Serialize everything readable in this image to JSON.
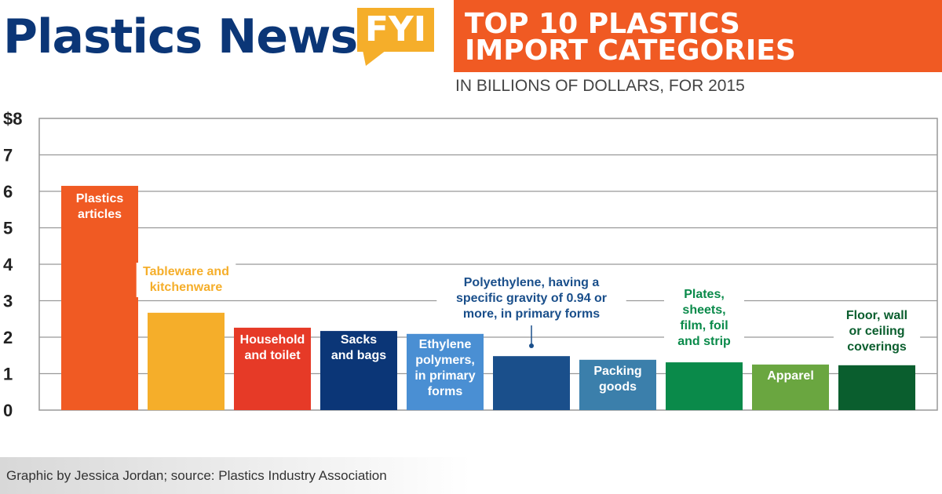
{
  "header": {
    "logo": "Plastics News",
    "badge": "FYI",
    "title_line1": "TOP 10 PLASTICS",
    "title_line2": "IMPORT CATEGORIES",
    "subtitle": "IN BILLIONS OF DOLLARS, FOR 2015"
  },
  "footer": {
    "credit": "Graphic by Jessica Jordan; source: Plastics Industry Association"
  },
  "chart_data": {
    "type": "bar",
    "title": "TOP 10 PLASTICS IMPORT CATEGORIES",
    "subtitle": "IN BILLIONS OF DOLLARS, FOR 2015",
    "ylim": [
      0,
      8
    ],
    "yticks": [
      "0",
      "1",
      "2",
      "3",
      "4",
      "5",
      "6",
      "7",
      "$8"
    ],
    "grid": true,
    "categories": [
      "Plastics articles",
      "Tableware and kitchenware",
      "Household and toilet",
      "Sacks and bags",
      "Ethylene polymers, in primary forms",
      "Polyethylene, having a specific gravity of 0.94 or more, in primary forms",
      "Packing goods",
      "Plates, sheets, film, foil and strip",
      "Apparel",
      "Floor, wall or ceiling coverings"
    ],
    "label_lines": [
      [
        "Plastics",
        "articles"
      ],
      [
        "Tableware and",
        "kitchenware"
      ],
      [
        "Household",
        "and toilet"
      ],
      [
        "Sacks",
        "and bags"
      ],
      [
        "Ethylene",
        "polymers,",
        "in primary",
        "forms"
      ],
      [
        "Polyethylene, having a",
        "specific gravity of 0.94 or",
        "more, in primary forms"
      ],
      [
        "Packing",
        "goods"
      ],
      [
        "Plates,",
        "sheets,",
        "film, foil",
        "and strip"
      ],
      [
        "Apparel"
      ],
      [
        "Floor, wall",
        "or ceiling",
        "coverings"
      ]
    ],
    "values": [
      6.15,
      2.67,
      2.26,
      2.17,
      2.09,
      1.48,
      1.38,
      1.31,
      1.25,
      1.23
    ],
    "colors": [
      "#f05a23",
      "#f5ae2a",
      "#e63a27",
      "#0b3677",
      "#4a8fd3",
      "#1a4f8b",
      "#3b7fab",
      "#0a8a4a",
      "#6aa640",
      "#0a5e2e"
    ],
    "label_colors": [
      "#ffffff",
      "#f5ae2a",
      "#ffffff",
      "#ffffff",
      "#ffffff",
      "#1a4f8b",
      "#ffffff",
      "#0a8a4a",
      "#ffffff",
      "#0a5e2e"
    ]
  }
}
